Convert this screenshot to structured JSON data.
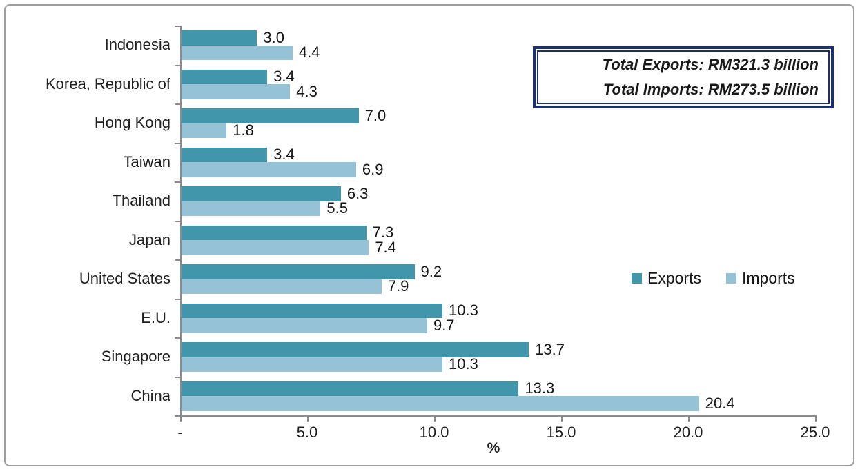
{
  "chart_data": {
    "type": "bar",
    "orientation": "horizontal",
    "categories": [
      "Indonesia",
      "Korea, Republic of",
      "Hong Kong",
      "Taiwan",
      "Thailand",
      "Japan",
      "United States",
      "E.U.",
      "Singapore",
      "China"
    ],
    "series": [
      {
        "name": "Exports",
        "color": "#4296ac",
        "values": [
          3.0,
          3.4,
          7.0,
          3.4,
          6.3,
          7.3,
          9.2,
          10.3,
          13.7,
          13.3
        ]
      },
      {
        "name": "Imports",
        "color": "#95c3d5",
        "values": [
          4.4,
          4.3,
          1.8,
          6.9,
          5.5,
          7.4,
          7.9,
          9.7,
          10.3,
          20.4
        ]
      }
    ],
    "value_labels_shown": true,
    "value_label_decimals": 1,
    "xlabel": "%",
    "xlim": [
      0,
      25
    ],
    "x_tick_labels": [
      "-",
      "5.0",
      "10.0",
      "15.0",
      "20.0",
      "25.0"
    ],
    "grid": false,
    "legend_position": "middle-right",
    "annotations": [
      "Total Exports: RM321.3 billion",
      "Total Imports: RM273.5 billion"
    ]
  },
  "annotation_box": {
    "line1": "Total Exports: RM321.3 billion",
    "line2": "Total Imports: RM273.5 billion"
  },
  "colors": {
    "exports_bar": "#4296ac",
    "imports_bar": "#95c3d5",
    "annotation_border": "#1e2f6d",
    "axis": "#8a8a8a",
    "frame_border": "#9e9e9e",
    "text": "#1f1f1f"
  }
}
